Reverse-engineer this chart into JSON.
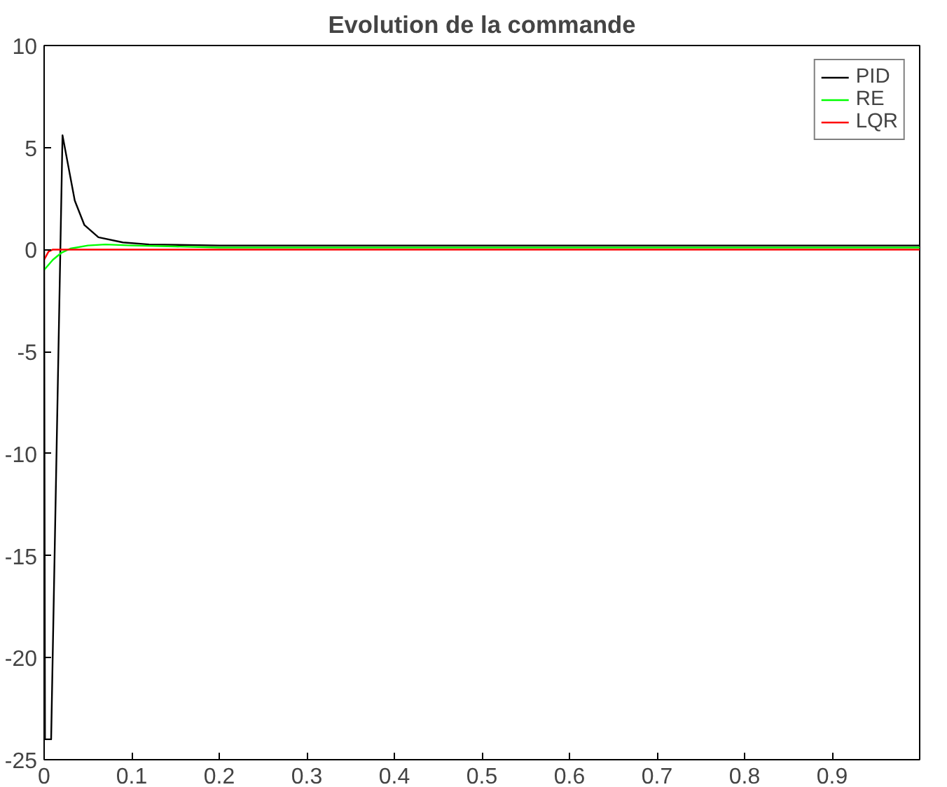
{
  "chart_data": {
    "type": "line",
    "title": "Evolution de la commande",
    "xlim": [
      0,
      1
    ],
    "ylim": [
      -25,
      10
    ],
    "xticks": [
      0,
      0.1,
      0.2,
      0.3,
      0.4,
      0.5,
      0.6,
      0.7,
      0.8,
      0.9
    ],
    "yticks": [
      -25,
      -20,
      -15,
      -10,
      -5,
      0,
      5,
      10
    ],
    "grid": false,
    "legend": "top right",
    "marker": "none",
    "line_style": "solid",
    "series": [
      {
        "name": "PID",
        "color": "#000000",
        "x": [
          0,
          0.001,
          0.008,
          0.021,
          0.028,
          0.035,
          0.046,
          0.062,
          0.09,
          0.12,
          0.2,
          0.3,
          0.4,
          0.5,
          0.6,
          0.7,
          0.8,
          0.9,
          1
        ],
        "values": [
          0,
          -24,
          -24,
          5.6,
          4,
          2.4,
          1.2,
          0.6,
          0.35,
          0.25,
          0.2,
          0.2,
          0.2,
          0.2,
          0.2,
          0.2,
          0.2,
          0.2,
          0.2
        ]
      },
      {
        "name": "RE",
        "color": "#00ff00",
        "x": [
          0,
          0.01,
          0.02,
          0.03,
          0.05,
          0.07,
          0.1,
          0.15,
          0.2,
          0.3,
          0.5,
          0.7,
          1
        ],
        "values": [
          -1,
          -0.5,
          -0.15,
          0.05,
          0.2,
          0.25,
          0.2,
          0.15,
          0.1,
          0.1,
          0.1,
          0.1,
          0.1
        ]
      },
      {
        "name": "LQR",
        "color": "#ff0000",
        "x": [
          0,
          0.005,
          0.01,
          0.05,
          0.2,
          0.5,
          1
        ],
        "values": [
          -0.5,
          -0.1,
          0,
          0,
          0,
          0,
          0
        ]
      }
    ]
  }
}
